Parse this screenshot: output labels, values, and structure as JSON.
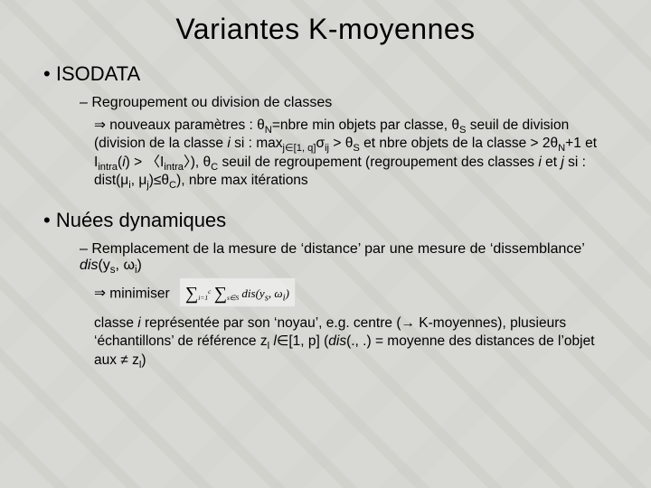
{
  "title": "Variantes K-moyennes",
  "isodata": {
    "heading": "ISODATA",
    "sub": "Regroupement ou division de classes",
    "body_html": "nouveaux paramètres : θ<span class='sub'>N</span>=nbre min objets par classe, θ<span class='sub'>S</span> seuil de division (division de la classe <span class='ital'>i</span> si : max<span class='sub'>j∈[1, q]</span>σ<span class='sub'>ij</span> &gt; θ<span class='sub'>S</span> et nbre objets de la classe &gt; 2θ<span class='sub'>N</span>+1 et I<span class='sub'>intra</span>(<span class='ital'>i</span>) &gt; 〈I<span class='sub'>intra</span>〉), θ<span class='sub'>C</span> seuil de regroupement (regroupement des classes <span class='ital'>i</span> et <span class='ital'>j</span> si : dist(μ<span class='sub'>i</span>, μ<span class='sub'>j</span>)≤θ<span class='sub'>C</span>), nbre max itérations"
  },
  "nuees": {
    "heading": "Nuées dynamiques",
    "sub_html": "Remplacement de la mesure de ‘distance’ par une mesure de ‘dissemblance’ <span class='ital'>dis</span>(y<span class='sub'>s</span>, ω<span class='sub'>i</span>)",
    "minimize": "minimiser",
    "formula_html": "<span class='sigma'>∑</span><span class='lim'><sub>i=1</sub><sup>c</sup></span> <span class='sigma'>∑</span><span class='lim'><sub>s∈S</sub></span> dis(y<sub>s</sub>, ω<sub>i</sub>)",
    "body_html": "classe <span class='ital'>i</span> représentée par son ‘noyau’, e.g. centre (→ K-moyennes), plusieurs ‘échantillons’ de référence z<span class='sub'>l</span> <span class='ital'>l</span>∈[1, p] (<span class='ital'>dis</span>(., .) = moyenne des distances de l’objet aux ≠ z<span class='sub'>l</span>)"
  }
}
